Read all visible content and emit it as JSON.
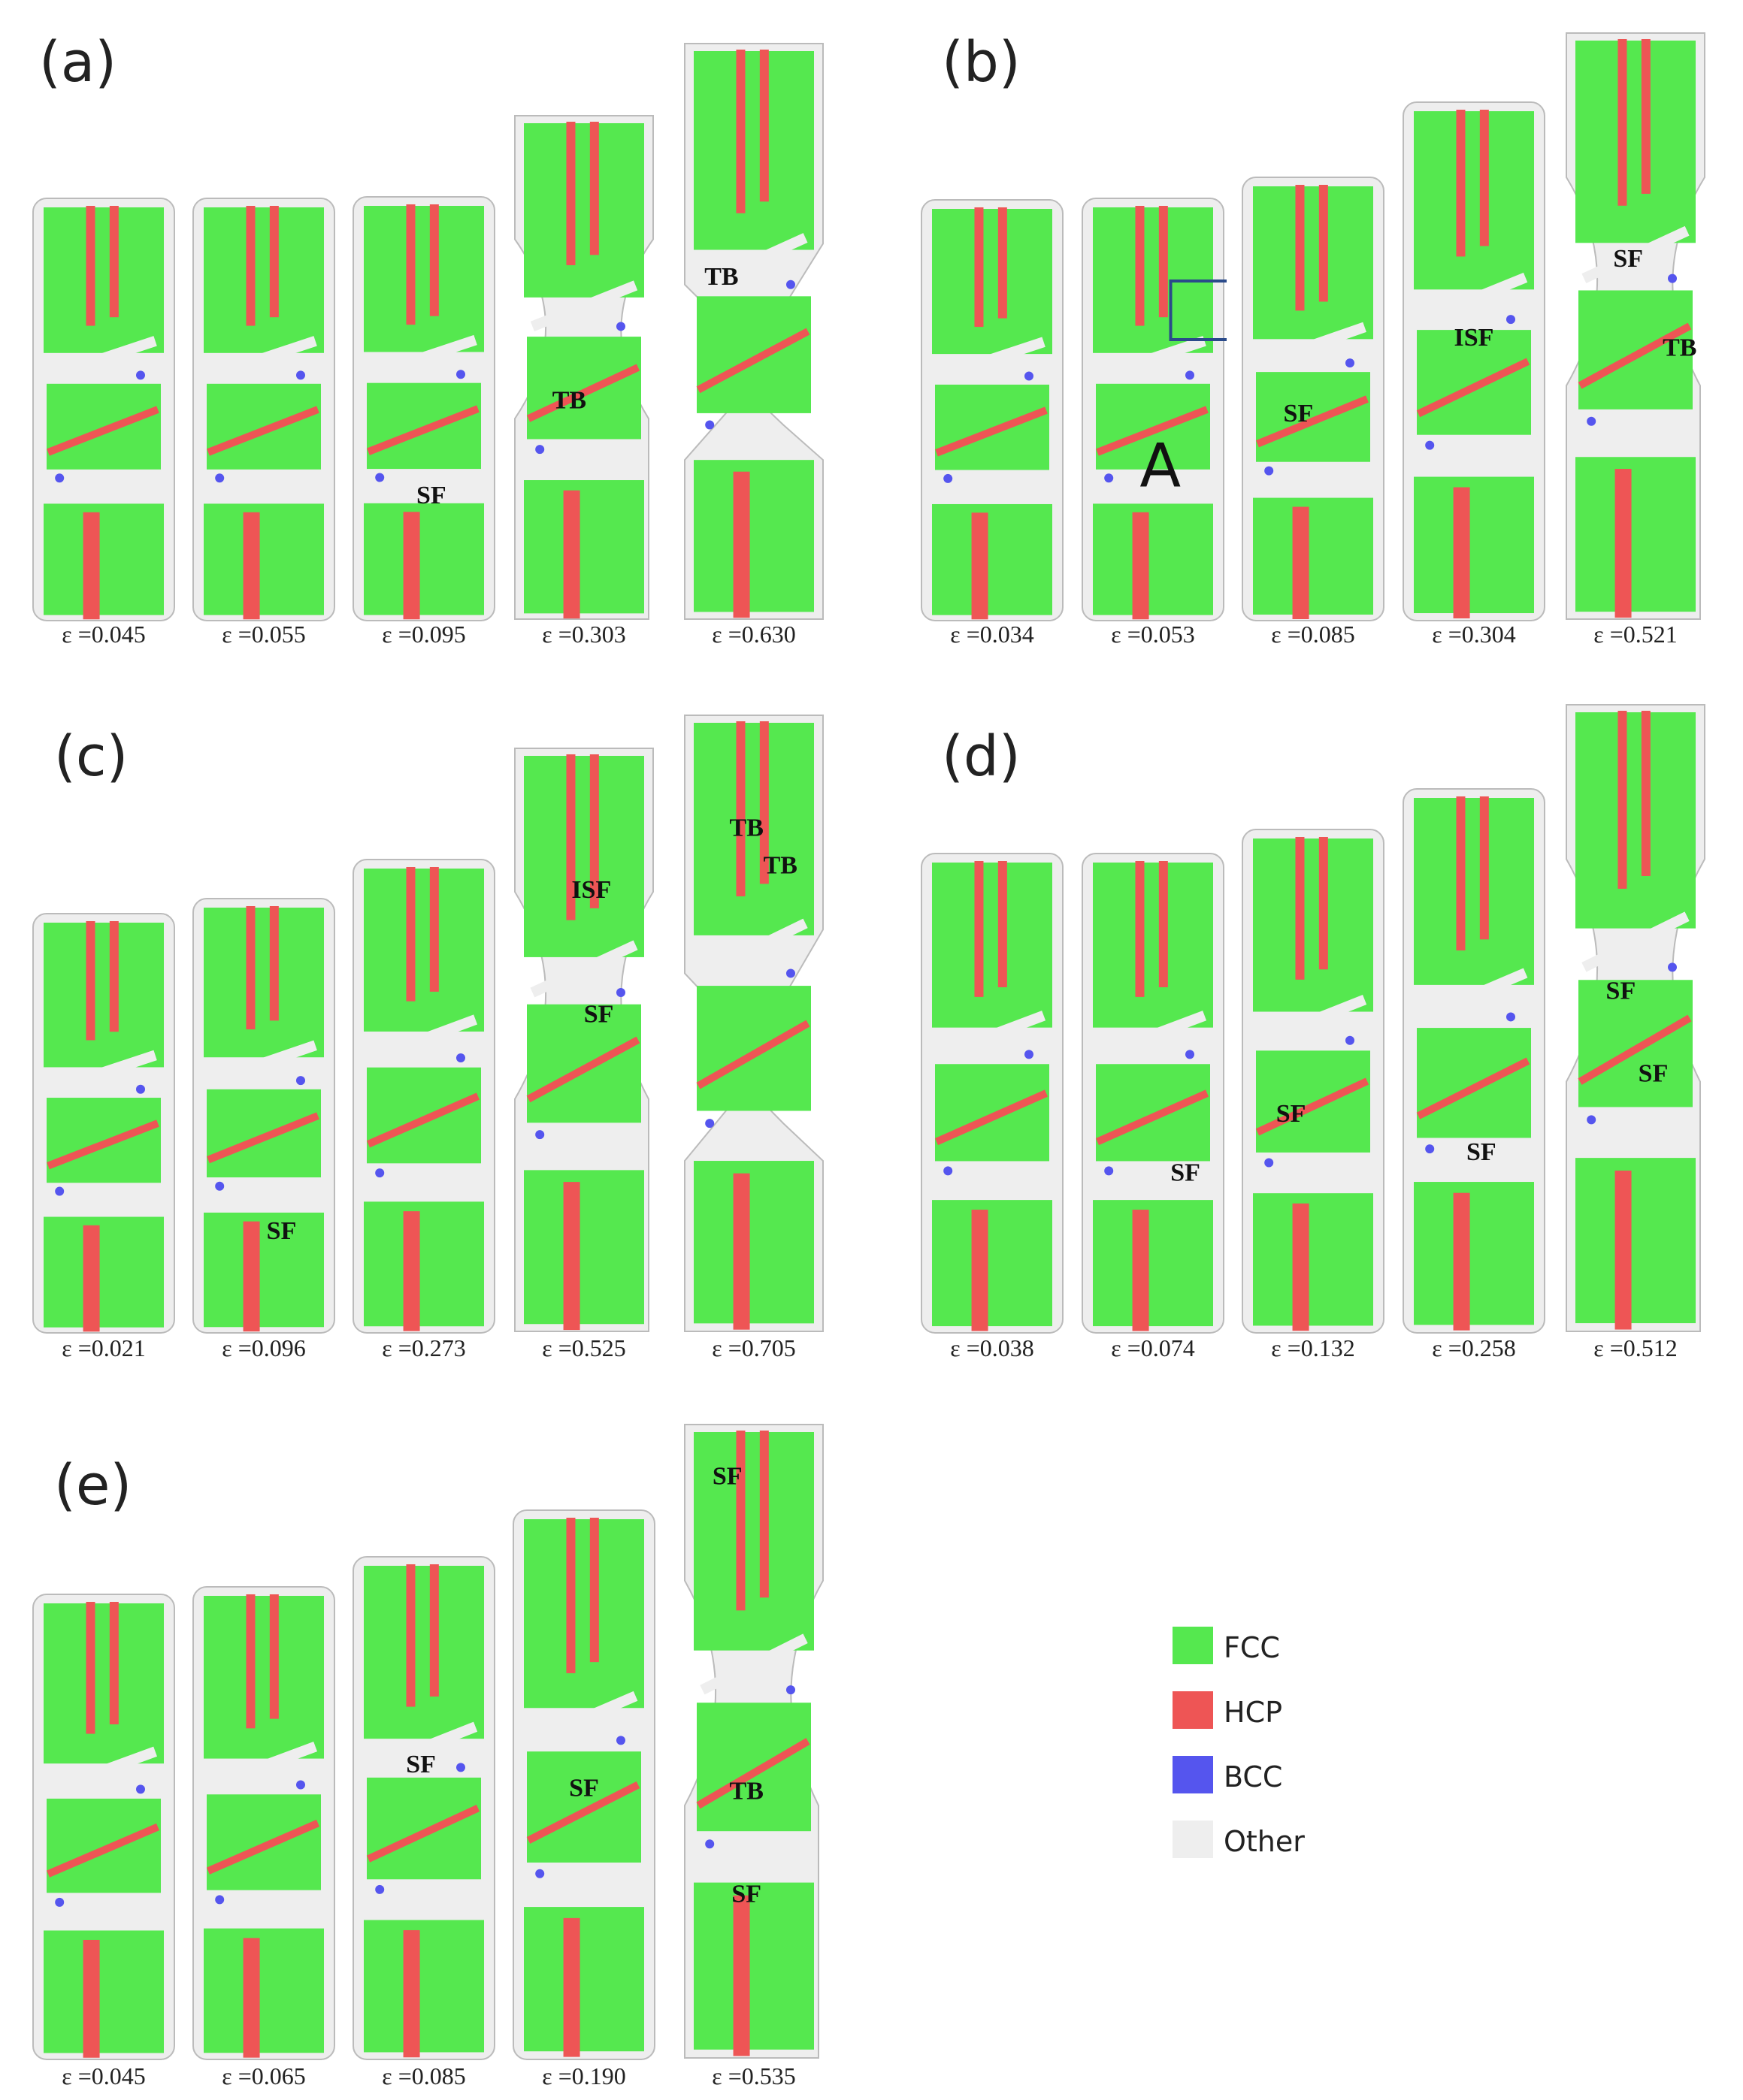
{
  "panels": [
    {
      "label": "(a)",
      "strains": [
        "ε =0.045",
        "ε =0.055",
        "ε =0.095",
        "ε =0.303",
        "ε =0.630"
      ],
      "annotations": [
        [
          "",
          ""
        ],
        [
          "",
          ""
        ],
        [
          "SF"
        ],
        [
          "TB"
        ],
        [
          "TB"
        ]
      ]
    },
    {
      "label": "(b)",
      "strains": [
        "ε =0.034",
        "ε =0.053",
        "ε =0.085",
        "ε =0.304",
        "ε =0.521"
      ],
      "annotations": [
        [],
        [
          "A"
        ],
        [
          "SF"
        ],
        [
          "ISF"
        ],
        [
          "SF",
          "TB"
        ]
      ]
    },
    {
      "label": "(c)",
      "strains": [
        "ε =0.021",
        "ε =0.096",
        "ε =0.273",
        "ε =0.525",
        "ε =0.705"
      ],
      "annotations": [
        [],
        [
          "SF"
        ],
        [],
        [
          "ISF",
          "SF"
        ],
        [
          "TB",
          "TB"
        ]
      ]
    },
    {
      "label": "(d)",
      "strains": [
        "ε =0.038",
        "ε =0.074",
        "ε =0.132",
        "ε =0.258",
        "ε =0.512"
      ],
      "annotations": [
        [],
        [
          "SF"
        ],
        [
          "SF"
        ],
        [
          "SF"
        ],
        [
          "SF",
          "SF"
        ]
      ]
    },
    {
      "label": "(e)",
      "strains": [
        "ε =0.045",
        "ε =0.065",
        "ε =0.085",
        "ε =0.190",
        "ε =0.535"
      ],
      "annotations": [
        [],
        [],
        [
          "SF"
        ],
        [
          "SF"
        ],
        [
          "SF",
          "TB",
          "SF"
        ]
      ]
    }
  ],
  "legend": [
    {
      "label": "FCC",
      "color": "#55e84f"
    },
    {
      "label": "HCP",
      "color": "#ee5555"
    },
    {
      "label": "BCC",
      "color": "#5555ee"
    },
    {
      "label": "Other",
      "color": "#eeeeee"
    }
  ]
}
